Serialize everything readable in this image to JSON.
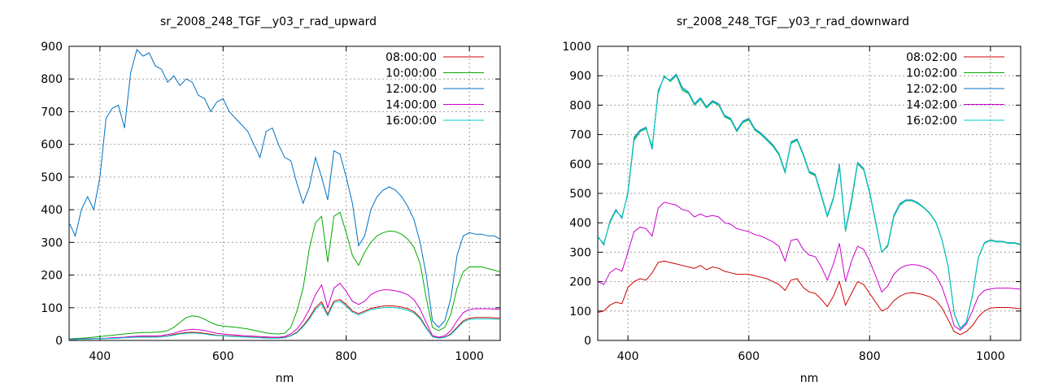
{
  "chart_data": [
    {
      "type": "line",
      "title": "sr_2008_248_TGF__y03_r_rad_upward",
      "xlabel": "nm",
      "ylabel": "",
      "xlim": [
        350,
        1050
      ],
      "ylim": [
        0,
        900
      ],
      "xticks": [
        400,
        600,
        800,
        1000
      ],
      "yticks": [
        0,
        100,
        200,
        300,
        400,
        500,
        600,
        700,
        800,
        900
      ],
      "grid": true,
      "legend_position": "top-right",
      "x": [
        350,
        360,
        370,
        380,
        390,
        400,
        410,
        420,
        430,
        440,
        450,
        460,
        470,
        480,
        490,
        500,
        510,
        520,
        530,
        540,
        550,
        560,
        570,
        580,
        590,
        600,
        610,
        620,
        630,
        640,
        650,
        660,
        670,
        680,
        690,
        700,
        710,
        720,
        730,
        740,
        750,
        760,
        770,
        780,
        790,
        800,
        810,
        820,
        830,
        840,
        850,
        860,
        870,
        880,
        890,
        900,
        910,
        920,
        930,
        940,
        950,
        960,
        970,
        980,
        990,
        1000,
        1010,
        1020,
        1030,
        1040,
        1050
      ],
      "series": [
        {
          "name": "08:00:00",
          "color": "#cc0000",
          "values": [
            3,
            3,
            4,
            4,
            5,
            5,
            6,
            7,
            8,
            9,
            10,
            11,
            11,
            11,
            11,
            12,
            14,
            18,
            22,
            24,
            25,
            24,
            22,
            19,
            16,
            15,
            14,
            13,
            12,
            11,
            10,
            9,
            8,
            8,
            8,
            9,
            15,
            25,
            45,
            70,
            100,
            118,
            80,
            120,
            125,
            110,
            90,
            82,
            90,
            98,
            102,
            105,
            106,
            105,
            102,
            97,
            88,
            70,
            40,
            12,
            8,
            10,
            20,
            40,
            60,
            68,
            70,
            70,
            70,
            69,
            68
          ]
        },
        {
          "name": "10:00:00",
          "color": "#00aa00",
          "values": [
            5,
            6,
            7,
            8,
            10,
            12,
            14,
            16,
            18,
            20,
            22,
            23,
            24,
            24,
            25,
            26,
            30,
            40,
            55,
            70,
            75,
            73,
            65,
            55,
            47,
            44,
            42,
            40,
            38,
            35,
            31,
            27,
            23,
            21,
            20,
            22,
            40,
            90,
            160,
            280,
            360,
            380,
            240,
            380,
            392,
            330,
            260,
            230,
            270,
            300,
            320,
            330,
            335,
            333,
            325,
            310,
            285,
            235,
            130,
            40,
            30,
            40,
            80,
            160,
            210,
            225,
            225,
            225,
            220,
            215,
            210
          ]
        },
        {
          "name": "12:00:00",
          "color": "#0070c0",
          "values": [
            360,
            320,
            400,
            440,
            400,
            500,
            680,
            710,
            720,
            650,
            820,
            890,
            870,
            880,
            840,
            830,
            790,
            810,
            780,
            800,
            790,
            750,
            740,
            700,
            730,
            740,
            700,
            680,
            660,
            640,
            600,
            560,
            640,
            650,
            600,
            560,
            550,
            480,
            420,
            470,
            560,
            500,
            430,
            580,
            570,
            500,
            420,
            290,
            320,
            400,
            440,
            460,
            470,
            460,
            440,
            410,
            370,
            300,
            200,
            60,
            40,
            60,
            130,
            260,
            320,
            330,
            325,
            325,
            320,
            320,
            310
          ]
        },
        {
          "name": "14:00:00",
          "color": "#cc00cc",
          "values": [
            4,
            4,
            5,
            5,
            6,
            6,
            7,
            8,
            9,
            10,
            12,
            13,
            14,
            14,
            14,
            15,
            18,
            22,
            28,
            32,
            34,
            33,
            30,
            26,
            22,
            20,
            18,
            17,
            15,
            14,
            13,
            12,
            11,
            10,
            10,
            12,
            20,
            35,
            60,
            95,
            140,
            170,
            100,
            160,
            175,
            150,
            120,
            110,
            120,
            140,
            150,
            155,
            155,
            152,
            147,
            140,
            125,
            95,
            55,
            15,
            10,
            14,
            30,
            60,
            85,
            95,
            97,
            97,
            97,
            96,
            95
          ]
        },
        {
          "name": "16:00:00",
          "color": "#00cccc",
          "values": [
            3,
            3,
            4,
            4,
            5,
            5,
            6,
            6,
            7,
            8,
            9,
            10,
            10,
            10,
            10,
            11,
            13,
            16,
            20,
            22,
            23,
            22,
            20,
            17,
            15,
            14,
            13,
            12,
            11,
            10,
            9,
            8,
            7,
            7,
            7,
            8,
            14,
            23,
            42,
            65,
            95,
            112,
            75,
            115,
            120,
            105,
            86,
            78,
            86,
            94,
            98,
            100,
            101,
            100,
            97,
            92,
            84,
            66,
            37,
            11,
            7,
            9,
            18,
            37,
            56,
            64,
            66,
            66,
            66,
            65,
            64
          ]
        }
      ]
    },
    {
      "type": "line",
      "title": "sr_2008_248_TGF__y03_r_rad_downward",
      "xlabel": "nm",
      "ylabel": "",
      "xlim": [
        350,
        1050
      ],
      "ylim": [
        0,
        1000
      ],
      "xticks": [
        400,
        600,
        800,
        1000
      ],
      "yticks": [
        0,
        100,
        200,
        300,
        400,
        500,
        600,
        700,
        800,
        900,
        1000
      ],
      "grid": true,
      "legend_position": "top-right",
      "x": [
        350,
        360,
        370,
        380,
        390,
        400,
        410,
        420,
        430,
        440,
        450,
        460,
        470,
        480,
        490,
        500,
        510,
        520,
        530,
        540,
        550,
        560,
        570,
        580,
        590,
        600,
        610,
        620,
        630,
        640,
        650,
        660,
        670,
        680,
        690,
        700,
        710,
        720,
        730,
        740,
        750,
        760,
        770,
        780,
        790,
        800,
        810,
        820,
        830,
        840,
        850,
        860,
        870,
        880,
        890,
        900,
        910,
        920,
        930,
        940,
        950,
        960,
        970,
        980,
        990,
        1000,
        1010,
        1020,
        1030,
        1040,
        1050
      ],
      "series": [
        {
          "name": "08:02:00",
          "color": "#cc0000",
          "values": [
            95,
            100,
            120,
            130,
            125,
            180,
            200,
            210,
            205,
            230,
            265,
            270,
            265,
            260,
            255,
            250,
            245,
            255,
            240,
            250,
            245,
            235,
            230,
            225,
            225,
            225,
            220,
            215,
            210,
            200,
            190,
            170,
            205,
            210,
            180,
            165,
            160,
            140,
            115,
            150,
            200,
            120,
            160,
            200,
            190,
            160,
            130,
            100,
            110,
            135,
            150,
            160,
            162,
            160,
            155,
            148,
            135,
            110,
            70,
            30,
            20,
            30,
            50,
            80,
            100,
            110,
            112,
            112,
            112,
            110,
            108
          ]
        },
        {
          "name": "10:02:00",
          "color": "#00aa00",
          "values": [
            350,
            330,
            400,
            440,
            420,
            500,
            680,
            710,
            720,
            660,
            840,
            900,
            880,
            900,
            850,
            840,
            800,
            820,
            790,
            810,
            800,
            760,
            750,
            710,
            740,
            750,
            715,
            700,
            680,
            660,
            630,
            570,
            670,
            680,
            630,
            570,
            560,
            490,
            420,
            480,
            590,
            370,
            470,
            600,
            580,
            500,
            400,
            300,
            320,
            420,
            460,
            475,
            475,
            465,
            450,
            430,
            400,
            340,
            250,
            90,
            40,
            60,
            150,
            280,
            330,
            340,
            335,
            335,
            330,
            330,
            325
          ]
        },
        {
          "name": "12:02:00",
          "color": "#0070c0",
          "values": [
            355,
            325,
            405,
            445,
            415,
            505,
            690,
            715,
            725,
            650,
            850,
            895,
            885,
            905,
            860,
            845,
            805,
            825,
            795,
            815,
            805,
            765,
            755,
            715,
            745,
            755,
            720,
            705,
            685,
            665,
            635,
            575,
            675,
            685,
            635,
            575,
            565,
            495,
            425,
            485,
            600,
            375,
            480,
            605,
            585,
            505,
            405,
            300,
            325,
            425,
            465,
            478,
            478,
            468,
            452,
            432,
            402,
            342,
            252,
            92,
            42,
            62,
            152,
            282,
            332,
            342,
            337,
            337,
            332,
            332,
            327
          ]
        },
        {
          "name": "14:02:00",
          "color": "#cc00cc",
          "values": [
            200,
            190,
            230,
            245,
            235,
            300,
            370,
            385,
            380,
            355,
            450,
            470,
            465,
            460,
            445,
            440,
            420,
            430,
            420,
            425,
            420,
            400,
            395,
            380,
            375,
            370,
            360,
            355,
            345,
            335,
            320,
            270,
            340,
            345,
            310,
            290,
            285,
            250,
            205,
            260,
            330,
            200,
            270,
            320,
            310,
            270,
            220,
            165,
            185,
            225,
            245,
            255,
            258,
            256,
            250,
            240,
            220,
            180,
            120,
            50,
            35,
            55,
            100,
            150,
            170,
            175,
            178,
            178,
            178,
            176,
            174
          ]
        },
        {
          "name": "16:02:00",
          "color": "#00cccc",
          "values": [
            352,
            328,
            402,
            442,
            418,
            502,
            685,
            712,
            722,
            655,
            845,
            898,
            882,
            902,
            855,
            842,
            802,
            822,
            792,
            812,
            802,
            762,
            752,
            712,
            742,
            752,
            717,
            702,
            682,
            662,
            632,
            572,
            672,
            682,
            632,
            572,
            562,
            492,
            422,
            482,
            595,
            372,
            475,
            602,
            582,
            502,
            402,
            300,
            322,
            422,
            462,
            476,
            476,
            466,
            451,
            431,
            401,
            341,
            251,
            91,
            41,
            61,
            151,
            281,
            331,
            341,
            336,
            336,
            331,
            331,
            326
          ]
        }
      ]
    }
  ]
}
